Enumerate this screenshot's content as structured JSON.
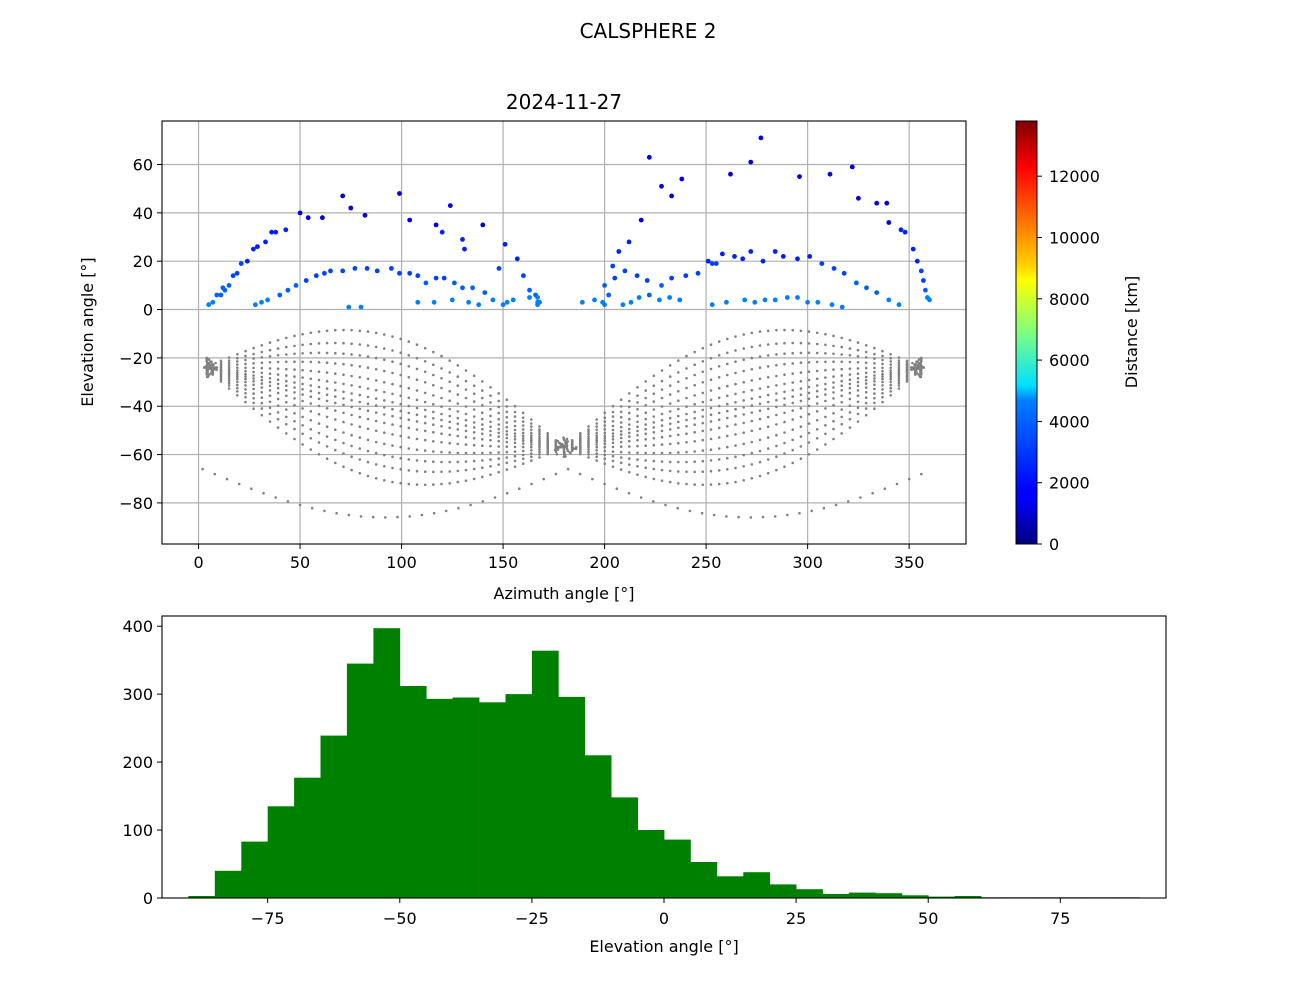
{
  "figure": {
    "suptitle": "CALSPHERE 2"
  },
  "chart_data": [
    {
      "type": "scatter",
      "title": "2024-11-27",
      "xlabel": "Azimuth angle [°]",
      "ylabel": "Elevation angle [°]",
      "xlim": [
        -18,
        378
      ],
      "ylim": [
        -97,
        78
      ],
      "xticks": [
        0,
        50,
        100,
        150,
        200,
        250,
        300,
        350
      ],
      "yticks": [
        -80,
        -60,
        -40,
        -20,
        0,
        20,
        40,
        60
      ],
      "grid": true,
      "below_horizon_color": "#808080",
      "visible_points": [
        [
          5,
          2
        ],
        [
          7,
          3
        ],
        [
          9,
          6
        ],
        [
          11,
          6
        ],
        [
          12,
          9
        ],
        [
          13,
          8
        ],
        [
          15,
          10
        ],
        [
          17,
          14
        ],
        [
          19,
          15
        ],
        [
          21,
          19
        ],
        [
          24,
          20
        ],
        [
          27,
          25
        ],
        [
          29,
          26
        ],
        [
          33,
          28
        ],
        [
          36,
          32
        ],
        [
          38,
          32
        ],
        [
          43,
          33
        ],
        [
          50,
          40
        ],
        [
          54,
          38
        ],
        [
          61,
          38
        ],
        [
          71,
          47
        ],
        [
          75,
          42
        ],
        [
          82,
          39
        ],
        [
          99,
          48
        ],
        [
          104,
          37
        ],
        [
          117,
          35
        ],
        [
          120,
          32
        ],
        [
          124,
          43
        ],
        [
          130,
          29
        ],
        [
          131,
          25
        ],
        [
          140,
          35
        ],
        [
          148,
          17
        ],
        [
          151,
          27
        ],
        [
          157,
          21
        ],
        [
          160,
          14
        ],
        [
          163,
          8
        ],
        [
          166,
          6
        ],
        [
          28,
          2
        ],
        [
          31,
          3
        ],
        [
          34,
          4
        ],
        [
          40,
          6
        ],
        [
          44,
          8
        ],
        [
          48,
          10
        ],
        [
          53,
          12
        ],
        [
          58,
          14
        ],
        [
          62,
          15
        ],
        [
          65,
          16
        ],
        [
          71,
          16
        ],
        [
          77,
          17
        ],
        [
          83,
          17
        ],
        [
          88,
          16
        ],
        [
          95,
          17
        ],
        [
          99,
          15
        ],
        [
          104,
          15
        ],
        [
          108,
          14
        ],
        [
          112,
          11
        ],
        [
          117,
          13
        ],
        [
          121,
          13
        ],
        [
          126,
          11
        ],
        [
          130,
          9
        ],
        [
          135,
          9
        ],
        [
          141,
          7
        ],
        [
          145,
          4
        ],
        [
          150,
          2
        ],
        [
          155,
          4
        ],
        [
          163,
          5
        ],
        [
          167,
          3
        ],
        [
          74,
          1
        ],
        [
          80,
          1
        ],
        [
          108,
          3
        ],
        [
          116,
          3
        ],
        [
          125,
          4
        ],
        [
          133,
          3
        ],
        [
          138,
          2
        ],
        [
          152,
          3
        ],
        [
          167,
          2
        ],
        [
          167,
          5
        ],
        [
          168,
          3
        ],
        [
          199,
          3
        ],
        [
          200,
          2
        ],
        [
          202,
          6
        ],
        [
          205,
          13
        ],
        [
          210,
          16
        ],
        [
          216,
          14
        ],
        [
          221,
          12
        ],
        [
          228,
          10
        ],
        [
          233,
          13
        ],
        [
          240,
          14
        ],
        [
          246,
          15
        ],
        [
          251,
          20
        ],
        [
          255,
          19
        ],
        [
          258,
          23
        ],
        [
          264,
          22
        ],
        [
          268,
          21
        ],
        [
          272,
          24
        ],
        [
          278,
          20
        ],
        [
          284,
          24
        ],
        [
          288,
          22
        ],
        [
          295,
          21
        ],
        [
          301,
          22
        ],
        [
          307,
          19
        ],
        [
          313,
          17
        ],
        [
          318,
          15
        ],
        [
          324,
          11
        ],
        [
          329,
          9
        ],
        [
          334,
          7
        ],
        [
          340,
          4
        ],
        [
          345,
          2
        ],
        [
          204,
          18
        ],
        [
          207,
          24
        ],
        [
          212,
          28
        ],
        [
          218,
          37
        ],
        [
          222,
          63
        ],
        [
          228,
          51
        ],
        [
          233,
          47
        ],
        [
          238,
          54
        ],
        [
          253,
          19
        ],
        [
          262,
          56
        ],
        [
          272,
          61
        ],
        [
          277,
          71
        ],
        [
          296,
          55
        ],
        [
          311,
          56
        ],
        [
          322,
          59
        ],
        [
          325,
          46
        ],
        [
          334,
          44
        ],
        [
          339,
          44
        ],
        [
          340,
          36
        ],
        [
          346,
          33
        ],
        [
          348,
          32
        ],
        [
          352,
          25
        ],
        [
          354,
          20
        ],
        [
          356,
          16
        ],
        [
          357,
          12
        ],
        [
          358,
          8
        ],
        [
          359,
          5
        ],
        [
          360,
          4
        ],
        [
          209,
          2
        ],
        [
          213,
          3
        ],
        [
          217,
          5
        ],
        [
          222,
          6
        ],
        [
          227,
          4
        ],
        [
          232,
          5
        ],
        [
          237,
          4
        ],
        [
          253,
          2
        ],
        [
          260,
          3
        ],
        [
          269,
          4
        ],
        [
          274,
          3
        ],
        [
          279,
          4
        ],
        [
          284,
          4
        ],
        [
          290,
          5
        ],
        [
          295,
          5
        ],
        [
          300,
          3
        ],
        [
          305,
          3
        ],
        [
          312,
          2
        ],
        [
          317,
          1
        ],
        [
          189,
          3
        ],
        [
          195,
          4
        ],
        [
          200,
          10
        ]
      ],
      "colorbar": {
        "label": "Distance [km]",
        "min": 0,
        "max": 13800,
        "ticks": [
          0,
          2000,
          4000,
          6000,
          8000,
          10000,
          12000
        ],
        "colormap": "jet"
      }
    },
    {
      "type": "bar",
      "title": "",
      "xlabel": "Elevation angle [°]",
      "ylabel": "",
      "xlim": [
        -95,
        95
      ],
      "ylim": [
        0,
        415
      ],
      "xticks": [
        -75,
        -50,
        -25,
        0,
        25,
        50,
        75
      ],
      "xtick_labels": [
        "−75",
        "−50",
        "−25",
        "0",
        "25",
        "50",
        "75"
      ],
      "yticks": [
        0,
        100,
        200,
        300,
        400
      ],
      "bar_color": "#008000",
      "bin_start": -90,
      "bin_width": 5,
      "values": [
        3,
        40,
        83,
        135,
        177,
        239,
        345,
        397,
        312,
        293,
        295,
        288,
        300,
        364,
        296,
        210,
        148,
        100,
        86,
        53,
        32,
        38,
        20,
        13,
        6,
        8,
        7,
        4,
        2,
        3,
        1,
        1,
        1,
        1,
        1,
        1
      ]
    }
  ]
}
